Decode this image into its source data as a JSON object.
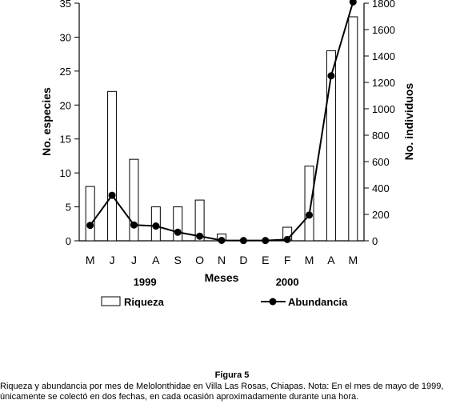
{
  "chart_data": {
    "type": "bar+line",
    "categories": [
      "M",
      "J",
      "J",
      "A",
      "S",
      "O",
      "N",
      "D",
      "E",
      "F",
      "M",
      "A",
      "M"
    ],
    "series": [
      {
        "name": "Riqueza",
        "type": "bar",
        "axis": "left",
        "values": [
          8,
          22,
          12,
          5,
          5,
          6,
          1,
          0,
          0,
          2,
          11,
          28,
          33
        ]
      },
      {
        "name": "Abundancia",
        "type": "line",
        "axis": "right",
        "values": [
          117,
          345,
          120,
          112,
          65,
          35,
          3,
          2,
          2,
          10,
          195,
          1250,
          1810
        ]
      }
    ],
    "xlabel": "Meses",
    "ylabel_left": "No. especies",
    "ylabel_right": "No. individuos",
    "ylim_left": [
      0,
      35
    ],
    "ylim_right": [
      0,
      1800
    ],
    "yticks_left": [
      0,
      5,
      10,
      15,
      20,
      25,
      30,
      35
    ],
    "yticks_right": [
      0,
      200,
      400,
      600,
      800,
      1000,
      1200,
      1400,
      1600,
      1800
    ],
    "year_labels": [
      {
        "text": "1999",
        "category_index": 2.5
      },
      {
        "text": "2000",
        "category_index": 9
      }
    ],
    "legend_placement": "bottom",
    "grid": false
  },
  "caption": {
    "label": "Figura 5",
    "lines": [
      "Riqueza y abundancia por mes de Melolonthidae en Villa Las Rosas, Chiapas. Nota: En el mes de mayo de 1999,",
      "únicamente se colectó en dos fechas, en cada ocasión aproximadamente durante una hora."
    ]
  }
}
